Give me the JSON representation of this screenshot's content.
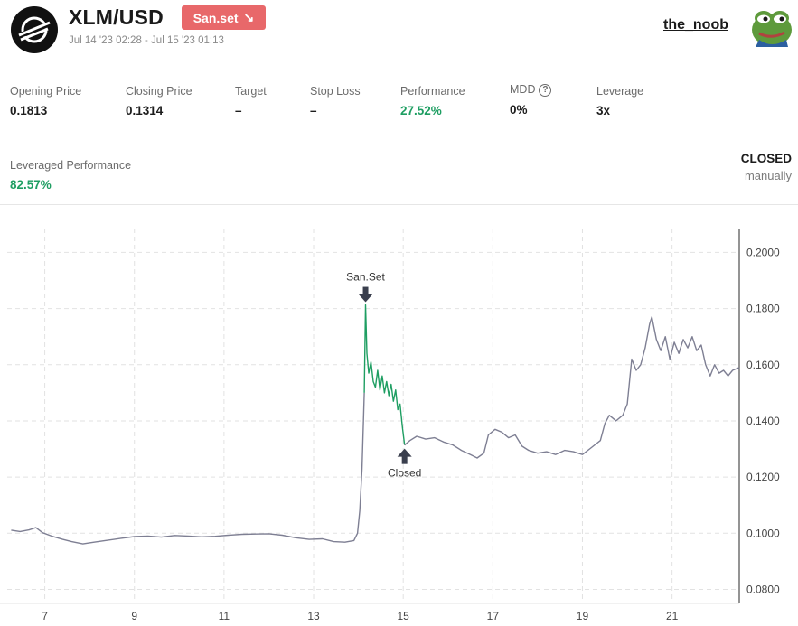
{
  "header": {
    "pair": "XLM/USD",
    "strategy_badge": "San.set",
    "strategy_arrow": "↘",
    "date_range": "Jul 14 '23 02:28 - Jul 15 '23 01:13",
    "username": "the_noob"
  },
  "stats": {
    "opening_price": {
      "label": "Opening Price",
      "value": "0.1813"
    },
    "closing_price": {
      "label": "Closing Price",
      "value": "0.1314"
    },
    "target": {
      "label": "Target",
      "value": "–"
    },
    "stop_loss": {
      "label": "Stop Loss",
      "value": "–"
    },
    "performance": {
      "label": "Performance",
      "value": "27.52%"
    },
    "mdd": {
      "label": "MDD",
      "value": "0%",
      "help": "?"
    },
    "leverage": {
      "label": "Leverage",
      "value": "3x"
    },
    "leveraged_performance": {
      "label": "Leveraged Performance",
      "value": "82.57%"
    }
  },
  "status": {
    "main": "CLOSED",
    "sub": "manually"
  },
  "colors": {
    "price_line": "#7e7f93",
    "trade_line": "#1e9e62",
    "positive": "#1e9e62",
    "badge": "#e8686a",
    "marker": "#3a3f4e"
  },
  "chart_data": {
    "type": "line",
    "x_unit": "day of month (July 2023)",
    "xlim": [
      6.0,
      22.5
    ],
    "ylim": [
      0.075,
      0.2085
    ],
    "x_ticks": [
      7,
      9,
      11,
      13,
      15,
      17,
      19,
      21
    ],
    "x_tick_labels": [
      "7",
      "9",
      "11",
      "13",
      "15",
      "17",
      "19",
      "21"
    ],
    "y_ticks": [
      0.08,
      0.1,
      0.12,
      0.14,
      0.16,
      0.18,
      0.2
    ],
    "y_tick_labels": [
      "0.0800",
      "0.1000",
      "0.1200",
      "0.1400",
      "0.1600",
      "0.1800",
      "0.2000"
    ],
    "grid": true,
    "series": [
      {
        "role": "price",
        "points": [
          [
            6.25,
            0.1011
          ],
          [
            6.45,
            0.1006
          ],
          [
            6.65,
            0.1012
          ],
          [
            6.8,
            0.102
          ],
          [
            6.95,
            0.1002
          ],
          [
            7.15,
            0.099
          ],
          [
            7.4,
            0.0978
          ],
          [
            7.6,
            0.097
          ],
          [
            7.85,
            0.0962
          ],
          [
            8.1,
            0.0968
          ],
          [
            8.4,
            0.0975
          ],
          [
            8.7,
            0.0982
          ],
          [
            9.0,
            0.0988
          ],
          [
            9.3,
            0.099
          ],
          [
            9.6,
            0.0986
          ],
          [
            9.9,
            0.0992
          ],
          [
            10.2,
            0.099
          ],
          [
            10.5,
            0.0987
          ],
          [
            10.8,
            0.0989
          ],
          [
            11.1,
            0.0993
          ],
          [
            11.4,
            0.0996
          ],
          [
            11.7,
            0.0997
          ],
          [
            12.0,
            0.0998
          ],
          [
            12.3,
            0.0993
          ],
          [
            12.6,
            0.0984
          ],
          [
            12.9,
            0.0978
          ],
          [
            13.2,
            0.098
          ],
          [
            13.45,
            0.097
          ],
          [
            13.7,
            0.0968
          ],
          [
            13.9,
            0.0974
          ],
          [
            13.98,
            0.1
          ],
          [
            14.03,
            0.108
          ],
          [
            14.08,
            0.123
          ],
          [
            14.13,
            0.15
          ]
        ]
      },
      {
        "role": "trade",
        "points": [
          [
            14.13,
            0.15
          ],
          [
            14.16,
            0.1813
          ],
          [
            14.19,
            0.164
          ],
          [
            14.23,
            0.157
          ],
          [
            14.28,
            0.161
          ],
          [
            14.33,
            0.154
          ],
          [
            14.38,
            0.152
          ],
          [
            14.43,
            0.158
          ],
          [
            14.48,
            0.151
          ],
          [
            14.53,
            0.156
          ],
          [
            14.58,
            0.15
          ],
          [
            14.63,
            0.154
          ],
          [
            14.68,
            0.149
          ],
          [
            14.73,
            0.153
          ],
          [
            14.78,
            0.147
          ],
          [
            14.83,
            0.151
          ],
          [
            14.88,
            0.144
          ],
          [
            14.93,
            0.146
          ],
          [
            14.98,
            0.138
          ],
          [
            15.03,
            0.1314
          ]
        ]
      },
      {
        "role": "price",
        "points": [
          [
            15.03,
            0.1314
          ],
          [
            15.15,
            0.133
          ],
          [
            15.3,
            0.1345
          ],
          [
            15.5,
            0.1335
          ],
          [
            15.7,
            0.134
          ],
          [
            15.9,
            0.1325
          ],
          [
            16.1,
            0.1315
          ],
          [
            16.3,
            0.1295
          ],
          [
            16.5,
            0.128
          ],
          [
            16.65,
            0.1268
          ],
          [
            16.8,
            0.1285
          ],
          [
            16.9,
            0.135
          ],
          [
            17.05,
            0.137
          ],
          [
            17.2,
            0.136
          ],
          [
            17.35,
            0.134
          ],
          [
            17.5,
            0.135
          ],
          [
            17.65,
            0.131
          ],
          [
            17.8,
            0.1295
          ],
          [
            18.0,
            0.1285
          ],
          [
            18.2,
            0.129
          ],
          [
            18.4,
            0.128
          ],
          [
            18.6,
            0.1295
          ],
          [
            18.8,
            0.129
          ],
          [
            19.0,
            0.128
          ],
          [
            19.2,
            0.1305
          ],
          [
            19.4,
            0.133
          ],
          [
            19.5,
            0.139
          ],
          [
            19.6,
            0.142
          ],
          [
            19.75,
            0.14
          ],
          [
            19.9,
            0.142
          ],
          [
            20.0,
            0.146
          ],
          [
            20.1,
            0.162
          ],
          [
            20.2,
            0.158
          ],
          [
            20.3,
            0.16
          ],
          [
            20.4,
            0.166
          ],
          [
            20.5,
            0.1745
          ],
          [
            20.55,
            0.177
          ],
          [
            20.65,
            0.169
          ],
          [
            20.75,
            0.165
          ],
          [
            20.85,
            0.17
          ],
          [
            20.95,
            0.162
          ],
          [
            21.05,
            0.168
          ],
          [
            21.15,
            0.164
          ],
          [
            21.25,
            0.169
          ],
          [
            21.35,
            0.166
          ],
          [
            21.45,
            0.17
          ],
          [
            21.55,
            0.165
          ],
          [
            21.65,
            0.167
          ],
          [
            21.75,
            0.16
          ],
          [
            21.85,
            0.156
          ],
          [
            21.95,
            0.16
          ],
          [
            22.05,
            0.157
          ],
          [
            22.15,
            0.158
          ],
          [
            22.25,
            0.156
          ],
          [
            22.35,
            0.158
          ],
          [
            22.5,
            0.159
          ]
        ]
      }
    ],
    "markers": [
      {
        "label": "San.Set",
        "x": 14.16,
        "y": 0.1813,
        "direction": "down"
      },
      {
        "label": "Closed",
        "x": 15.03,
        "y": 0.1314,
        "direction": "up"
      }
    ]
  }
}
